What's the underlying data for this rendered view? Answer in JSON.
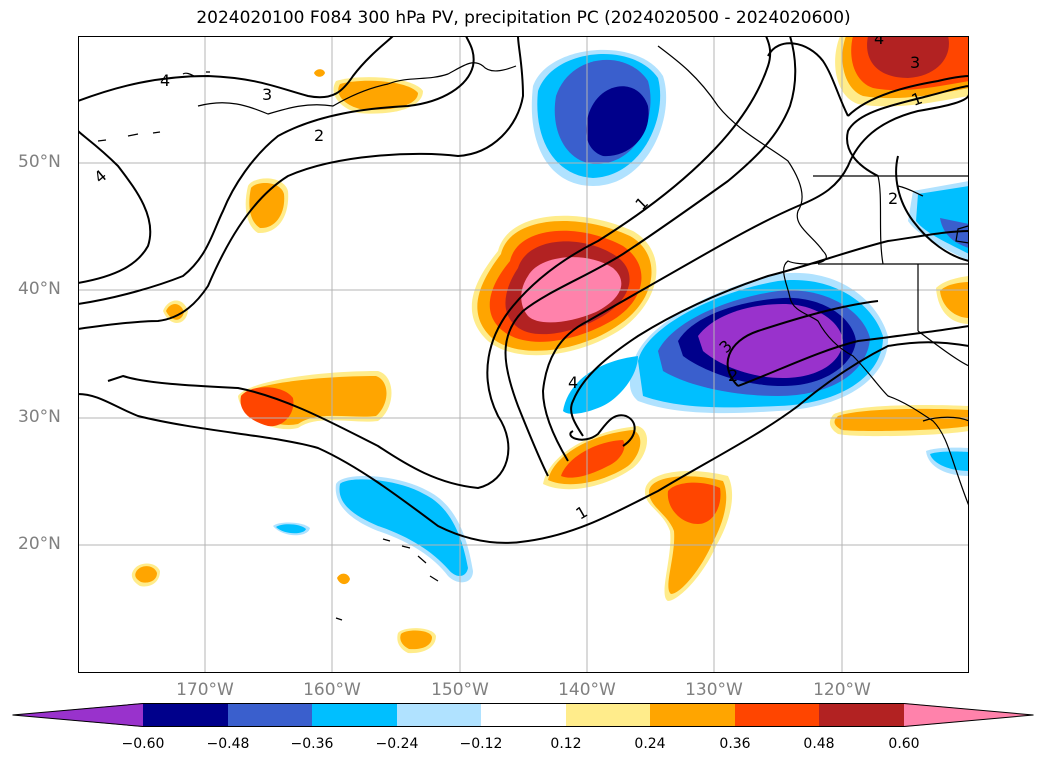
{
  "title": "2024020100 F084 300 hPa PV, precipitation PC (2024020500 - 2024020600)",
  "lat_labels": [
    "50°N",
    "40°N",
    "30°N",
    "20°N"
  ],
  "lon_labels": [
    "170°W",
    "160°W",
    "150°W",
    "140°W",
    "130°W",
    "120°W"
  ],
  "contour_labels": [
    "4",
    "3",
    "2",
    "4",
    "1",
    "4",
    "3",
    "3",
    "2",
    "1",
    "1",
    "2",
    "4"
  ],
  "colorbar": {
    "ticks": [
      "−0.60",
      "−0.48",
      "−0.36",
      "−0.24",
      "−0.12",
      "0.12",
      "0.24",
      "0.36",
      "0.48",
      "0.60"
    ],
    "colors": [
      "#9932cc",
      "#00008b",
      "#3a5fcd",
      "#00bfff",
      "#b0e2ff",
      "#ffffff",
      "#ffec8b",
      "#ffa500",
      "#ff4500",
      "#b22222",
      "#ff82ab"
    ]
  }
}
